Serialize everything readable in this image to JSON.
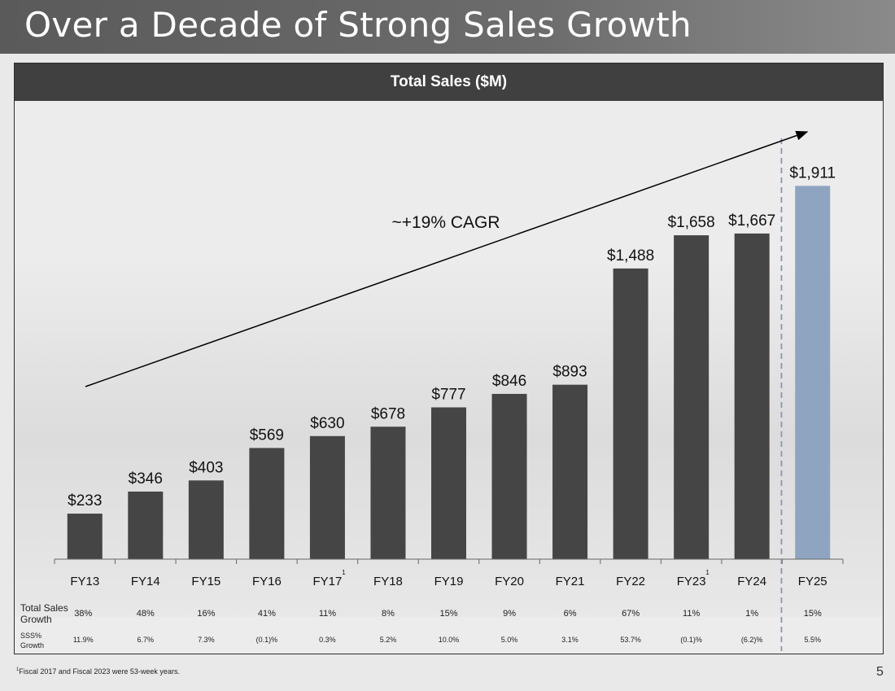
{
  "slide": {
    "title": "Over a Decade of Strong Sales Growth",
    "footnote_marker": "1",
    "footnote": "Fiscal 2017 and Fiscal 2023 were 53-week years.",
    "page_number": "5"
  },
  "table": {
    "row1_label": "Total Sales Growth",
    "row2_label": "SSS% Growth",
    "total_sales_growth": [
      "38%",
      "48%",
      "16%",
      "41%",
      "11%",
      "8%",
      "15%",
      "9%",
      "6%",
      "67%",
      "11%",
      "1%",
      "15%"
    ],
    "sss_growth": [
      "11.9%",
      "6.7%",
      "7.3%",
      "(0.1)%",
      "0.3%",
      "5.2%",
      "10.0%",
      "5.0%",
      "3.1%",
      "53.7%",
      "(0.1)%",
      "(6.2)%",
      "5.5%"
    ]
  },
  "chart_data": {
    "type": "bar",
    "title": "Total Sales ($M)",
    "categories": [
      "FY13",
      "FY14",
      "FY15",
      "FY16",
      "FY17",
      "FY18",
      "FY19",
      "FY20",
      "FY21",
      "FY22",
      "FY23",
      "FY24",
      "FY25"
    ],
    "values": [
      233,
      346,
      403,
      569,
      630,
      678,
      777,
      846,
      893,
      1488,
      1658,
      1667,
      1911
    ],
    "labels": [
      "$233",
      "$346",
      "$403",
      "$569",
      "$630",
      "$678",
      "$777",
      "$846",
      "$893",
      "$1,488",
      "$1,658",
      "$1,667",
      "$1,911"
    ],
    "superscripts": {
      "FY17": "1",
      "FY23": "1"
    },
    "highlight_category": "FY25",
    "ylim": [
      0,
      2000
    ],
    "annotation": "~+19% CAGR",
    "colors": {
      "bar": "#454545",
      "highlight": "#8fa4c0",
      "divider": "#8a97ad"
    }
  }
}
